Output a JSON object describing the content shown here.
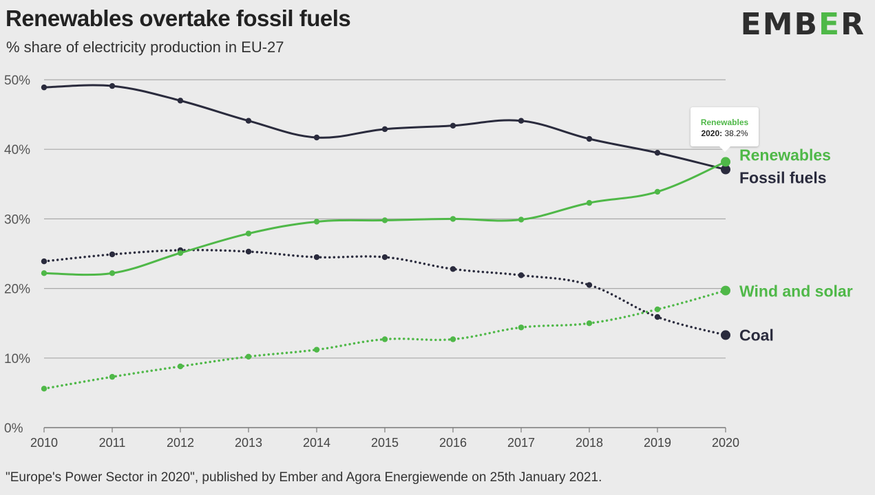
{
  "header": {
    "title": "Renewables overtake fossil fuels",
    "subtitle": "% share of electricity production in EU-27",
    "logo_left": "EMB",
    "logo_accent": "E",
    "logo_right": "R"
  },
  "source_note": "\"Europe's Power Sector in 2020\", published by Ember and Agora Energiewende on 25th January 2021.",
  "colors": {
    "dark": "#2a2b3d",
    "green": "#4fb848",
    "grid": "#a9a9a9",
    "background": "#ebebeb"
  },
  "tooltip": {
    "series": "Renewables",
    "year": "2020",
    "value": "38.2%"
  },
  "chart_data": {
    "type": "line",
    "title": "Renewables overtake fossil fuels",
    "subtitle": "% share of electricity production in EU-27",
    "x": [
      2010,
      2011,
      2012,
      2013,
      2014,
      2015,
      2016,
      2017,
      2018,
      2019,
      2020
    ],
    "x_tick_labels": [
      "2010",
      "2011",
      "2012",
      "2013",
      "2014",
      "2015",
      "2016",
      "2017",
      "2018",
      "2019",
      "2020"
    ],
    "y_tick_labels": [
      "0%",
      "10%",
      "20%",
      "30%",
      "40%",
      "50%"
    ],
    "y_ticks": [
      0,
      10,
      20,
      30,
      40,
      50
    ],
    "ylim": [
      0,
      50
    ],
    "grid": true,
    "series": [
      {
        "name": "Fossil fuels",
        "color": "#2a2b3d",
        "style": "solid",
        "values": [
          48.9,
          49.1,
          47.0,
          44.1,
          41.7,
          42.9,
          43.4,
          44.1,
          41.5,
          39.5,
          37.1
        ]
      },
      {
        "name": "Renewables",
        "color": "#4fb848",
        "style": "solid",
        "values": [
          22.2,
          22.2,
          25.1,
          27.9,
          29.6,
          29.8,
          30.0,
          29.9,
          32.3,
          33.9,
          38.2
        ]
      },
      {
        "name": "Coal",
        "color": "#2a2b3d",
        "style": "dotted",
        "values": [
          23.9,
          24.9,
          25.5,
          25.3,
          24.5,
          24.5,
          22.8,
          21.9,
          20.5,
          15.9,
          13.3
        ]
      },
      {
        "name": "Wind and solar",
        "color": "#4fb848",
        "style": "dotted",
        "values": [
          5.6,
          7.3,
          8.8,
          10.2,
          11.2,
          12.7,
          12.7,
          14.4,
          15.0,
          17.0,
          19.7
        ]
      }
    ]
  }
}
